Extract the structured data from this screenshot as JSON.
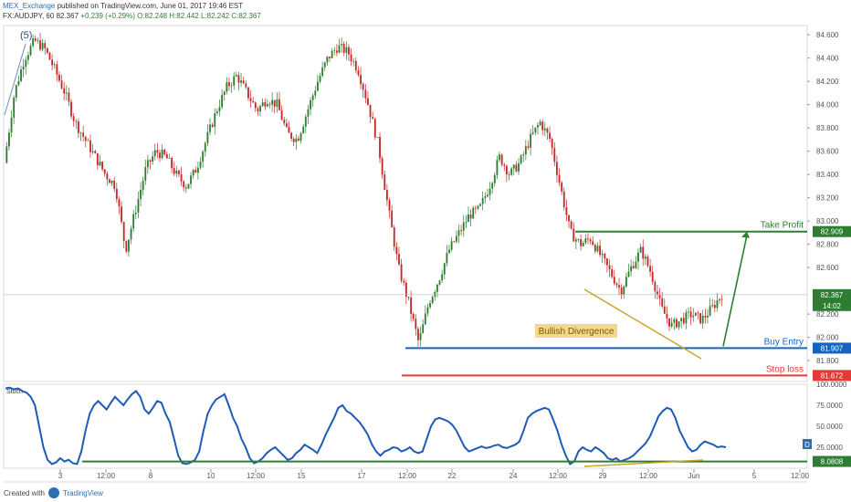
{
  "header": {
    "publisher": "MEX_Exchange",
    "published_text": "published on TradingView.com, June 01, 2017 19:46 EST",
    "symbol_line": "FX:AUDJPY, 60",
    "last": "82.367",
    "change": "+0.239 (+0.29%)",
    "open": "O:82.248",
    "high": "H:82.442",
    "low": "L:82.242",
    "close": "C:82.367"
  },
  "footer": {
    "created_with": "Created with",
    "brand": "TradingView"
  },
  "colors": {
    "up": "#2e7d32",
    "down": "#c62828",
    "blue": "#1565c0",
    "green": "#2e7d32",
    "red": "#e53935",
    "gold": "#c9a227",
    "stoch": "#1e5bb8"
  },
  "chart_data": [
    {
      "type": "candlestick",
      "symbol": "FX:AUDJPY",
      "timeframe": "60",
      "ylim": [
        81.62,
        84.68
      ],
      "y_ticks": [
        "84.600",
        "84.400",
        "84.200",
        "84.000",
        "83.800",
        "83.600",
        "83.400",
        "83.200",
        "83.000",
        "82.800",
        "82.600",
        "82.200",
        "82.000",
        "81.800"
      ],
      "x_ticks": [
        "3",
        "12:00",
        "8",
        "10",
        "12:00",
        "15",
        "17",
        "12:00",
        "22",
        "24",
        "12:00",
        "29",
        "12:00",
        "Jun",
        "5",
        "12:00"
      ],
      "wave_label": "(5)",
      "price_path": [
        83.5,
        84.1,
        84.4,
        84.55,
        84.48,
        84.3,
        84.1,
        83.85,
        83.7,
        83.55,
        83.4,
        83.3,
        82.75,
        83.1,
        83.45,
        83.6,
        83.55,
        83.4,
        83.3,
        83.45,
        83.7,
        83.95,
        84.15,
        84.25,
        84.1,
        83.95,
        84.05,
        84.0,
        83.75,
        83.7,
        83.95,
        84.2,
        84.4,
        84.5,
        84.45,
        84.3,
        84.0,
        83.65,
        83.1,
        82.6,
        82.3,
        81.95,
        82.3,
        82.5,
        82.75,
        82.9,
        83.05,
        83.1,
        83.3,
        83.55,
        83.4,
        83.5,
        83.7,
        83.85,
        83.7,
        83.3,
        82.9,
        82.8,
        82.85,
        82.7,
        82.55,
        82.4,
        82.6,
        82.75,
        82.55,
        82.25,
        82.1,
        82.15,
        82.2,
        82.15,
        82.25,
        82.37
      ],
      "last_price": "82.367",
      "last_price_countdown": "14:02",
      "levels": [
        {
          "name": "Take Profit",
          "value": 82.909,
          "label": "82.909"
        },
        {
          "name": "Buy Entry",
          "value": 81.907,
          "label": "81.907"
        },
        {
          "name": "Stop loss",
          "value": 81.672,
          "label": "81.672"
        }
      ],
      "annotations": [
        "Bullish Divergence"
      ]
    },
    {
      "type": "line",
      "name": "Stoch",
      "ylim": [
        0,
        100
      ],
      "y_ticks": [
        "100.0000",
        "75.0000",
        "50.0000",
        "25.0000"
      ],
      "level": {
        "value": 8.0808,
        "label": "8.0808"
      },
      "scale_badge": "D",
      "values": [
        95,
        96,
        94,
        95,
        92,
        90,
        85,
        75,
        50,
        25,
        10,
        5,
        7,
        12,
        8,
        10,
        6,
        5,
        20,
        45,
        65,
        75,
        80,
        75,
        70,
        78,
        85,
        80,
        75,
        82,
        88,
        92,
        85,
        70,
        65,
        72,
        80,
        78,
        65,
        55,
        35,
        15,
        6,
        5,
        7,
        10,
        20,
        45,
        65,
        75,
        82,
        85,
        88,
        75,
        60,
        50,
        35,
        25,
        12,
        6,
        8,
        12,
        18,
        22,
        25,
        20,
        15,
        10,
        12,
        18,
        22,
        28,
        25,
        22,
        18,
        28,
        40,
        50,
        60,
        72,
        75,
        68,
        65,
        60,
        55,
        48,
        40,
        28,
        20,
        15,
        20,
        22,
        25,
        24,
        20,
        22,
        25,
        20,
        18,
        20,
        35,
        50,
        58,
        60,
        58,
        56,
        52,
        45,
        35,
        25,
        20,
        22,
        24,
        26,
        24,
        25,
        27,
        28,
        25,
        24,
        26,
        28,
        32,
        45,
        60,
        65,
        68,
        70,
        72,
        70,
        58,
        45,
        28,
        15,
        5,
        8,
        20,
        25,
        22,
        20,
        25,
        22,
        18,
        12,
        10,
        12,
        8,
        10,
        12,
        15,
        20,
        25,
        30,
        38,
        50,
        62,
        68,
        72,
        70,
        60,
        45,
        35,
        25,
        20,
        22,
        28,
        32,
        30,
        28,
        25,
        26,
        25
      ]
    }
  ]
}
